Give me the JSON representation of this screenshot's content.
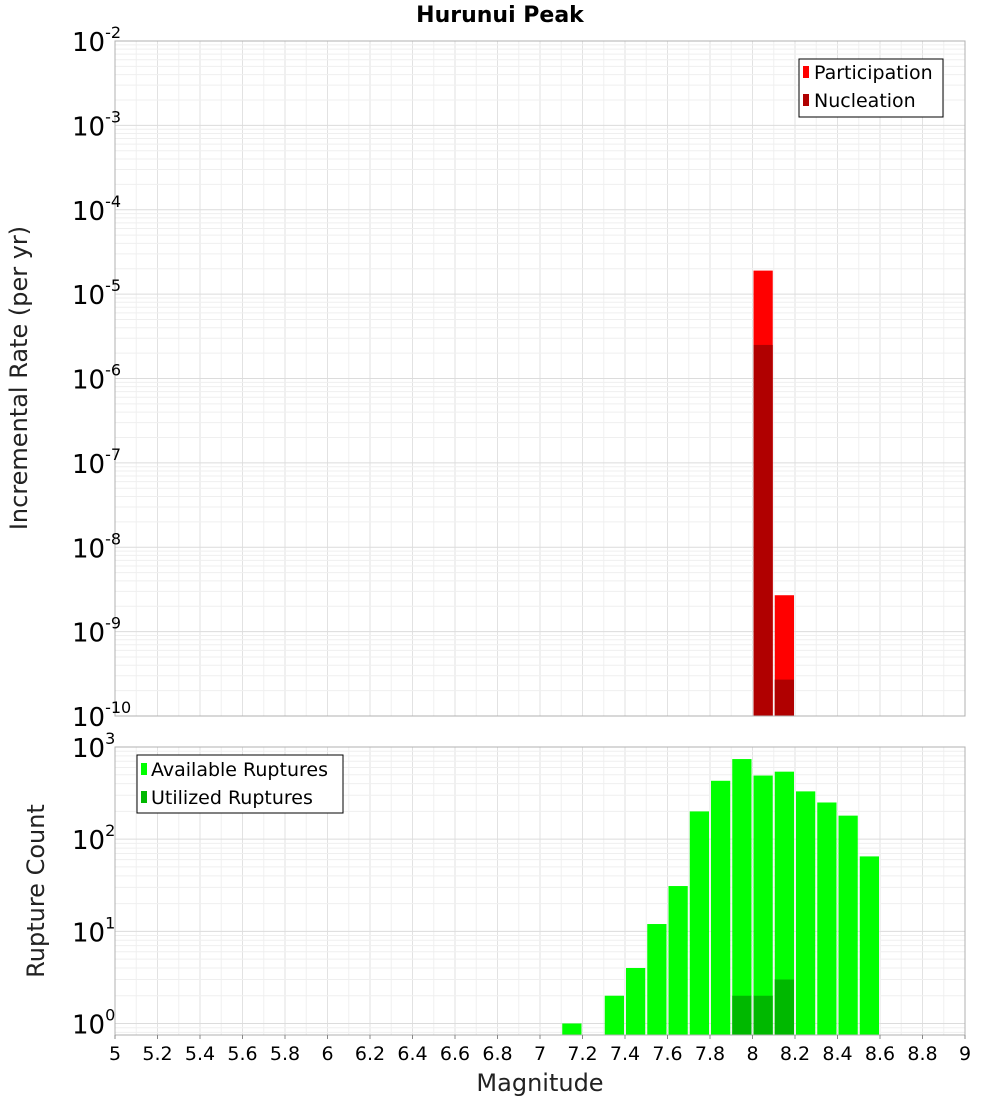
{
  "title": "Hurunui Peak",
  "chart_data": [
    {
      "type": "bar",
      "ylabel": "Incremental Rate (per yr)",
      "xlabel": "",
      "xlim": [
        5,
        9
      ],
      "ylim": [
        1e-10,
        0.01
      ],
      "yscale": "log",
      "grid": true,
      "legend_position": "top-right",
      "bin_width": 0.1,
      "y_ticks": [
        {
          "base": "10",
          "exp": "-2"
        },
        {
          "base": "10",
          "exp": "-3"
        },
        {
          "base": "10",
          "exp": "-4"
        },
        {
          "base": "10",
          "exp": "-5"
        },
        {
          "base": "10",
          "exp": "-6"
        },
        {
          "base": "10",
          "exp": "-7"
        },
        {
          "base": "10",
          "exp": "-8"
        },
        {
          "base": "10",
          "exp": "-9"
        },
        {
          "base": "10",
          "exp": "-10"
        }
      ],
      "series": [
        {
          "name": "Participation",
          "color": "#ff0000",
          "x": [
            8.05,
            8.15
          ],
          "values": [
            1.9e-05,
            2.7e-09
          ]
        },
        {
          "name": "Nucleation",
          "color": "#b00000",
          "x": [
            8.05,
            8.15
          ],
          "values": [
            2.5e-06,
            2.7e-10
          ]
        }
      ]
    },
    {
      "type": "bar",
      "ylabel": "Rupture Count",
      "xlabel": "Magnitude",
      "xlim": [
        5,
        9
      ],
      "ylim": [
        0.75,
        1000
      ],
      "yscale": "log",
      "grid": true,
      "legend_position": "top-left",
      "bin_width": 0.1,
      "y_ticks": [
        {
          "base": "10",
          "exp": "3"
        },
        {
          "base": "10",
          "exp": "2"
        },
        {
          "base": "10",
          "exp": "1"
        },
        {
          "base": "10",
          "exp": "0"
        }
      ],
      "x_tick_labels": [
        "5",
        "5.2",
        "5.4",
        "5.6",
        "5.8",
        "6",
        "6.2",
        "6.4",
        "6.6",
        "6.8",
        "7",
        "7.2",
        "7.4",
        "7.6",
        "7.8",
        "8",
        "8.2",
        "8.4",
        "8.6",
        "8.8",
        "9"
      ],
      "series": [
        {
          "name": "Available Ruptures",
          "color": "#00ff00",
          "x": [
            7.15,
            7.35,
            7.45,
            7.55,
            7.65,
            7.75,
            7.85,
            7.95,
            8.05,
            8.15,
            8.25,
            8.35,
            8.45,
            8.55
          ],
          "values": [
            1,
            2,
            4,
            12,
            31,
            200,
            430,
            740,
            490,
            540,
            330,
            250,
            180,
            65
          ]
        },
        {
          "name": "Utilized Ruptures",
          "color": "#00b800",
          "x": [
            7.95,
            8.05,
            8.15
          ],
          "values": [
            2,
            2,
            3
          ]
        }
      ]
    }
  ]
}
